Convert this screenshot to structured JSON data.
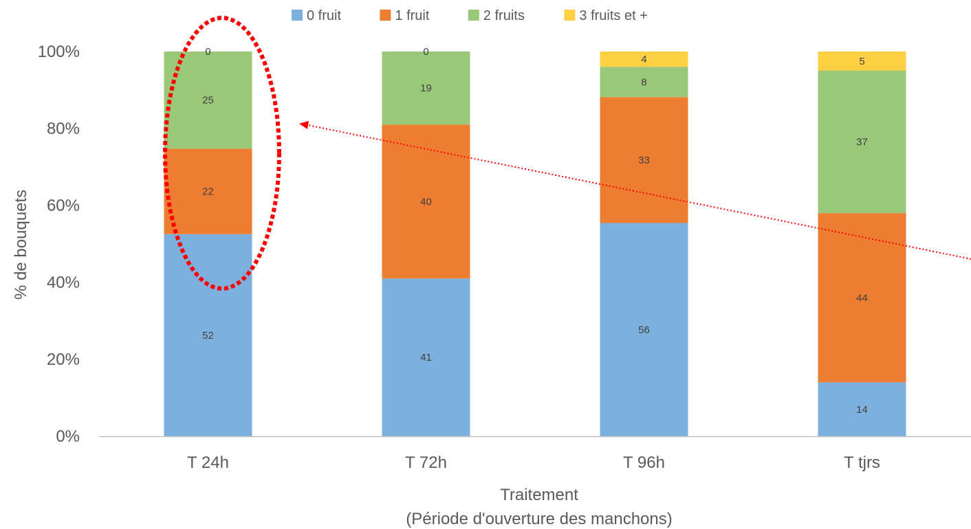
{
  "chart_data": {
    "type": "bar",
    "stacked": true,
    "percent": true,
    "categories": [
      "T 24h",
      "T 72h",
      "T 96h",
      "T tjrs"
    ],
    "series": [
      {
        "name": "0 fruit",
        "color": "#7EB0DE",
        "values": [
          52,
          41,
          56,
          14
        ]
      },
      {
        "name": "1 fruit",
        "color": "#ED7D31",
        "values": [
          22,
          40,
          33,
          44
        ]
      },
      {
        "name": "2 fruits",
        "color": "#9BC878",
        "values": [
          25,
          19,
          8,
          37
        ]
      },
      {
        "name": "3 fruits et +",
        "color": "#FFD044",
        "values": [
          0,
          0,
          4,
          5
        ]
      }
    ],
    "y_ticks": [
      "0%",
      "20%",
      "40%",
      "60%",
      "80%",
      "100%"
    ],
    "ylim": [
      0,
      100
    ],
    "ylabel": "% de bouquets",
    "xlabel_line1": "Traitement",
    "xlabel_line2": "(Période d'ouverture des manchons)",
    "legend_position": "top",
    "grid": false,
    "annotations": {
      "ellipse": {
        "around_category": "T 24h",
        "style": "dotted",
        "color": "#FF0000"
      },
      "arrow": {
        "style": "dotted",
        "color": "#FF0000",
        "pointing_to": "T 24h"
      }
    }
  }
}
